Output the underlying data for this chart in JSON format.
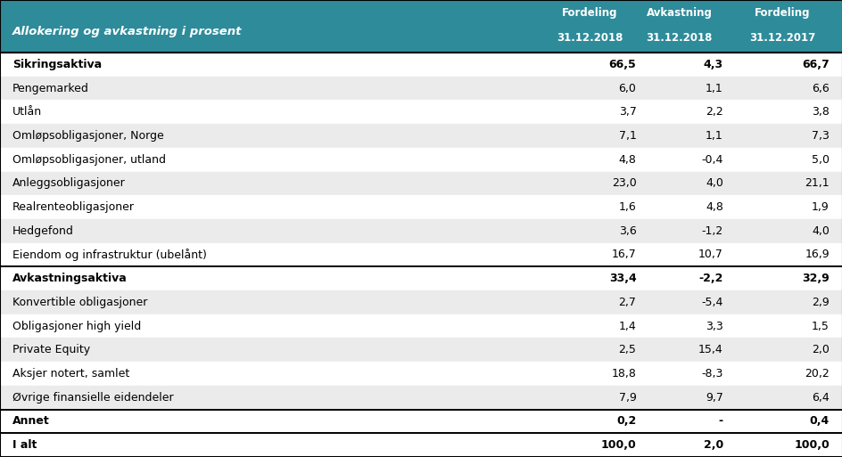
{
  "header_bg": "#2E8B9A",
  "header_text_color": "#FFFFFF",
  "header_label": "Allokering og avkastning i prosent",
  "col_headers_line1": [
    "Fordeling",
    "Avkastning",
    "Fordeling"
  ],
  "col_headers_line2": [
    "31.12.2018",
    "31.12.2018",
    "31.12.2017"
  ],
  "rows": [
    {
      "label": "Sikringsaktiva",
      "bold": true,
      "v1": "66,5",
      "v2": "4,3",
      "v3": "66,7",
      "shade": "white",
      "top_border": false,
      "bottom_border": false
    },
    {
      "label": "Pengemarked",
      "bold": false,
      "v1": "6,0",
      "v2": "1,1",
      "v3": "6,6",
      "shade": "light",
      "top_border": false,
      "bottom_border": false
    },
    {
      "label": "Utlån",
      "bold": false,
      "v1": "3,7",
      "v2": "2,2",
      "v3": "3,8",
      "shade": "white",
      "top_border": false,
      "bottom_border": false
    },
    {
      "label": "Omløpsobligasjoner, Norge",
      "bold": false,
      "v1": "7,1",
      "v2": "1,1",
      "v3": "7,3",
      "shade": "light",
      "top_border": false,
      "bottom_border": false
    },
    {
      "label": "Omløpsobligasjoner, utland",
      "bold": false,
      "v1": "4,8",
      "v2": "-0,4",
      "v3": "5,0",
      "shade": "white",
      "top_border": false,
      "bottom_border": false
    },
    {
      "label": "Anleggsobligasjoner",
      "bold": false,
      "v1": "23,0",
      "v2": "4,0",
      "v3": "21,1",
      "shade": "light",
      "top_border": false,
      "bottom_border": false
    },
    {
      "label": "Realrenteobligasjoner",
      "bold": false,
      "v1": "1,6",
      "v2": "4,8",
      "v3": "1,9",
      "shade": "white",
      "top_border": false,
      "bottom_border": false
    },
    {
      "label": "Hedgefond",
      "bold": false,
      "v1": "3,6",
      "v2": "-1,2",
      "v3": "4,0",
      "shade": "light",
      "top_border": false,
      "bottom_border": false
    },
    {
      "label": "Eiendom og infrastruktur (ubelånt)",
      "bold": false,
      "v1": "16,7",
      "v2": "10,7",
      "v3": "16,9",
      "shade": "white",
      "top_border": false,
      "bottom_border": true
    },
    {
      "label": "Avkastningsaktiva",
      "bold": true,
      "v1": "33,4",
      "v2": "-2,2",
      "v3": "32,9",
      "shade": "white",
      "top_border": true,
      "bottom_border": false
    },
    {
      "label": "Konvertible obligasjoner",
      "bold": false,
      "v1": "2,7",
      "v2": "-5,4",
      "v3": "2,9",
      "shade": "light",
      "top_border": false,
      "bottom_border": false
    },
    {
      "label": "Obligasjoner high yield",
      "bold": false,
      "v1": "1,4",
      "v2": "3,3",
      "v3": "1,5",
      "shade": "white",
      "top_border": false,
      "bottom_border": false
    },
    {
      "label": "Private Equity",
      "bold": false,
      "v1": "2,5",
      "v2": "15,4",
      "v3": "2,0",
      "shade": "light",
      "top_border": false,
      "bottom_border": false
    },
    {
      "label": "Aksjer notert, samlet",
      "bold": false,
      "v1": "18,8",
      "v2": "-8,3",
      "v3": "20,2",
      "shade": "white",
      "top_border": false,
      "bottom_border": false
    },
    {
      "label": "Øvrige finansielle eidendeler",
      "bold": false,
      "v1": "7,9",
      "v2": "9,7",
      "v3": "6,4",
      "shade": "light",
      "top_border": false,
      "bottom_border": false
    },
    {
      "label": "Annet",
      "bold": true,
      "v1": "0,2",
      "v2": "-",
      "v3": "0,4",
      "shade": "white",
      "top_border": true,
      "bottom_border": false
    },
    {
      "label": "I alt",
      "bold": true,
      "v1": "100,0",
      "v2": "2,0",
      "v3": "100,0",
      "shade": "white",
      "top_border": true,
      "bottom_border": false
    }
  ],
  "shade_color": "#EBEBEB",
  "border_color": "#000000",
  "text_color": "#000000",
  "fig_width": 9.45,
  "fig_height": 5.13
}
